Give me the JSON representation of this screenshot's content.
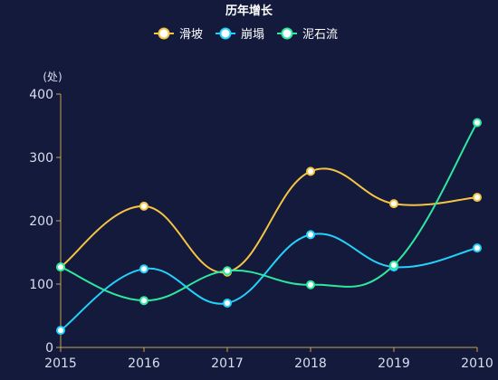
{
  "chart_data": {
    "type": "line",
    "title": "历年增长",
    "ylabel": "(处)",
    "ylim": [
      0,
      400
    ],
    "yticks": [
      0,
      100,
      200,
      300,
      400
    ],
    "categories": [
      "2015",
      "2016",
      "2017",
      "2018",
      "2019",
      "2010"
    ],
    "smooth": true,
    "grid": false,
    "legend_position": "top-center",
    "series": [
      {
        "name": "滑坡",
        "color": "#f5c444",
        "values": [
          127,
          223,
          119,
          278,
          227,
          237
        ]
      },
      {
        "name": "崩塌",
        "color": "#25d1fa",
        "values": [
          27,
          124,
          70,
          178,
          127,
          157
        ]
      },
      {
        "name": "泥石流",
        "color": "#2ee8a0",
        "values": [
          127,
          74,
          121,
          99,
          130,
          355
        ]
      }
    ]
  },
  "style": {
    "background": "#131a3b",
    "axis_color": "#c5a44b",
    "text_color": "#d9def0"
  }
}
